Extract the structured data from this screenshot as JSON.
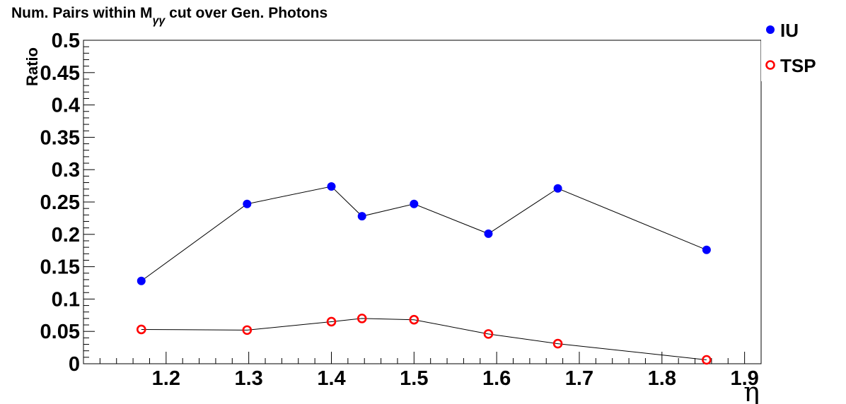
{
  "chart_data": {
    "type": "scatter",
    "title": "Num. Pairs within M",
    "title_subscript": "γγ",
    "title_suffix": " cut over Gen. Photons",
    "xlabel": "η",
    "ylabel": "Ratio",
    "xlim": [
      1.1,
      1.92
    ],
    "ylim": [
      0,
      0.5
    ],
    "x_ticks": [
      "1.2",
      "1.3",
      "1.4",
      "1.5",
      "1.6",
      "1.7",
      "1.8",
      "1.9"
    ],
    "y_ticks": [
      "0",
      "0.05",
      "0.1",
      "0.15",
      "0.2",
      "0.25",
      "0.3",
      "0.35",
      "0.4",
      "0.45",
      "0.5"
    ],
    "legend_position": "top-right",
    "series": [
      {
        "name": "IU",
        "marker": "filled-circle",
        "color": "#0000ff",
        "x": [
          1.17,
          1.298,
          1.4,
          1.437,
          1.5,
          1.59,
          1.674,
          1.854
        ],
        "y": [
          0.128,
          0.247,
          0.274,
          0.228,
          0.247,
          0.201,
          0.271,
          0.176
        ]
      },
      {
        "name": "TSP",
        "marker": "open-circle",
        "color": "#ff0000",
        "x": [
          1.17,
          1.298,
          1.4,
          1.437,
          1.5,
          1.59,
          1.674,
          1.854
        ],
        "y": [
          0.053,
          0.052,
          0.065,
          0.07,
          0.068,
          0.046,
          0.031,
          0.006
        ]
      }
    ]
  }
}
